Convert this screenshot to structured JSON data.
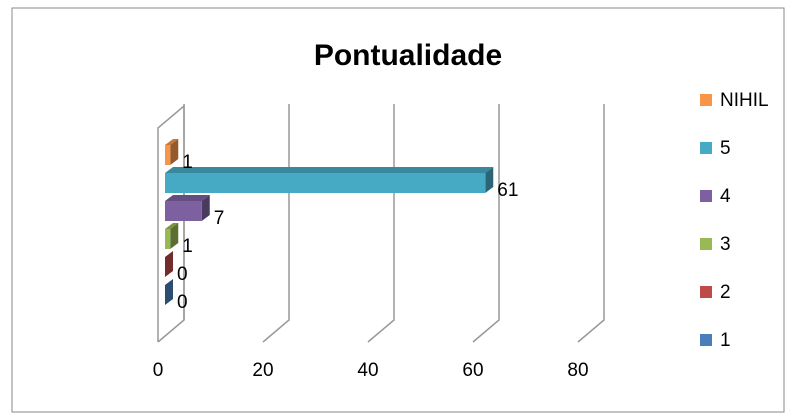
{
  "chart_data": {
    "type": "bar",
    "orientation": "horizontal",
    "title": "Pontualidade",
    "series": [
      {
        "name": "1",
        "color": "#4a7ebb",
        "values": [
          0
        ]
      },
      {
        "name": "2",
        "color": "#be4b48",
        "values": [
          0
        ]
      },
      {
        "name": "3",
        "color": "#98b954",
        "values": [
          1
        ]
      },
      {
        "name": "4",
        "color": "#7d60a0",
        "values": [
          7
        ]
      },
      {
        "name": "5",
        "color": "#46aac5",
        "values": [
          61
        ]
      },
      {
        "name": "NIHIL",
        "color": "#f79646",
        "values": [
          1
        ]
      }
    ],
    "xlim": [
      0,
      80
    ],
    "xticks": [
      0,
      20,
      40,
      60,
      80
    ],
    "grid": true,
    "legend": "right"
  }
}
